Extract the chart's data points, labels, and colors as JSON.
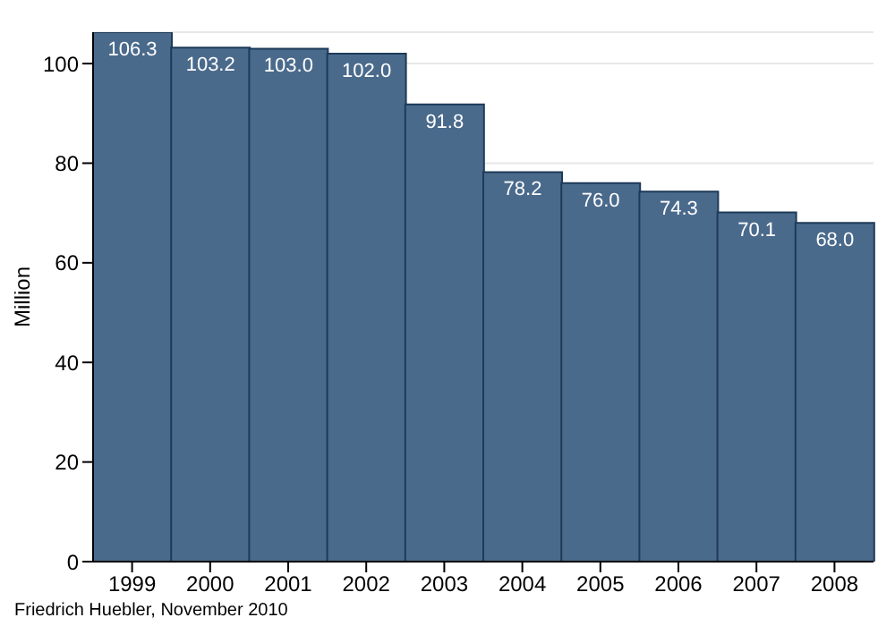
{
  "chart_data": {
    "type": "bar",
    "ylabel": "Million",
    "categories": [
      "1999",
      "2000",
      "2001",
      "2002",
      "2003",
      "2004",
      "2005",
      "2006",
      "2007",
      "2008"
    ],
    "values": [
      106.3,
      103.2,
      103.0,
      102.0,
      91.8,
      78.2,
      76.0,
      74.3,
      70.1,
      68.0
    ],
    "value_labels": [
      "106.3",
      "103.2",
      "103.0",
      "102.0",
      "91.8",
      "78.2",
      "76.0",
      "74.3",
      "70.1",
      "68.0"
    ],
    "color": "#4a6a8c",
    "ylim": [
      0,
      106.3
    ],
    "yticks": [
      0,
      20,
      40,
      60,
      80,
      100
    ],
    "grid": "y",
    "annotations": [
      "Friedrich Huebler, November 2010"
    ]
  }
}
